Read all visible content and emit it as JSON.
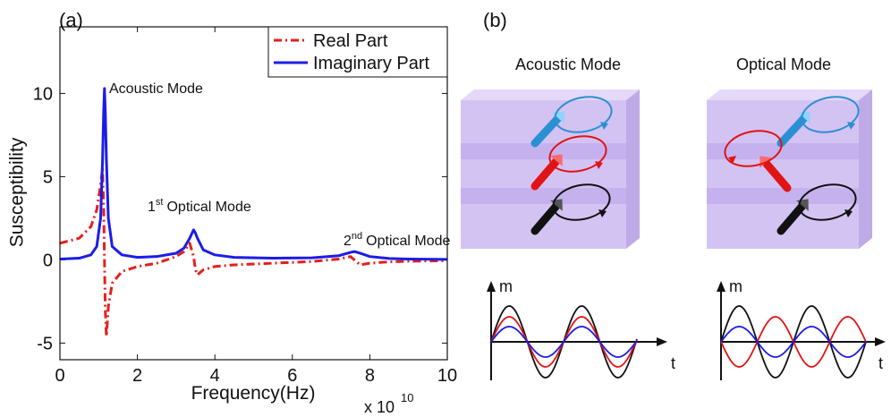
{
  "chart_data": {
    "type": "line",
    "panel_label": "(a)",
    "xlabel": "Frequency(Hz)",
    "ylabel": "Susceptibility",
    "x_scale_label": "x 10",
    "x_scale_exponent": "10",
    "x": [
      0,
      0.5,
      0.8,
      0.95,
      1.05,
      1.1,
      1.13,
      1.15,
      1.17,
      1.2,
      1.25,
      1.35,
      1.6,
      2.0,
      2.5,
      3.0,
      3.2,
      3.35,
      3.45,
      3.5,
      3.55,
      3.7,
      4.0,
      4.5,
      5.5,
      6.5,
      7.2,
      7.5,
      7.6,
      7.75,
      8.0,
      8.5,
      9.0,
      10
    ],
    "series": [
      {
        "name": "Real Part",
        "color": "#e3201c",
        "dash": "dash-dot",
        "values": [
          1.0,
          1.3,
          2.0,
          3.0,
          4.5,
          5.5,
          3,
          0,
          -3,
          -4.6,
          -2.8,
          -1.4,
          -0.7,
          -0.4,
          -0.2,
          0.2,
          0.5,
          1.0,
          0.2,
          -0.6,
          -0.9,
          -0.6,
          -0.4,
          -0.3,
          -0.2,
          -0.1,
          0.05,
          0.2,
          0,
          -0.3,
          -0.2,
          -0.12,
          -0.08,
          -0.05
        ]
      },
      {
        "name": "Imaginary Part",
        "color": "#1c1ce8",
        "dash": "solid",
        "values": [
          0.05,
          0.1,
          0.3,
          0.8,
          2.5,
          6,
          9,
          10.3,
          9,
          6,
          2.5,
          0.8,
          0.3,
          0.15,
          0.2,
          0.4,
          0.7,
          1.3,
          1.8,
          1.6,
          1.3,
          0.6,
          0.3,
          0.15,
          0.1,
          0.12,
          0.25,
          0.45,
          0.5,
          0.4,
          0.2,
          0.08,
          0.05,
          0.03
        ]
      }
    ],
    "xlim": [
      0,
      10
    ],
    "xticks": [
      0,
      2,
      4,
      6,
      8,
      10
    ],
    "ylim": [
      -6,
      14
    ],
    "yticks": [
      -5,
      0,
      5,
      10
    ],
    "grid": false,
    "legend": "upper right",
    "annotations": [
      {
        "text": "Acoustic Mode"
      },
      {
        "number": "1",
        "sup": "st",
        "text": "Optical Mode"
      },
      {
        "number": "2",
        "sup": "nd",
        "text": "Optical Mode"
      }
    ]
  },
  "diagram": {
    "label": "(b)",
    "panels": [
      {
        "title": "Acoustic Mode",
        "m_axis": "m",
        "t_axis": "t"
      },
      {
        "title": "Optical Mode",
        "m_axis": "m",
        "t_axis": "t"
      }
    ]
  }
}
